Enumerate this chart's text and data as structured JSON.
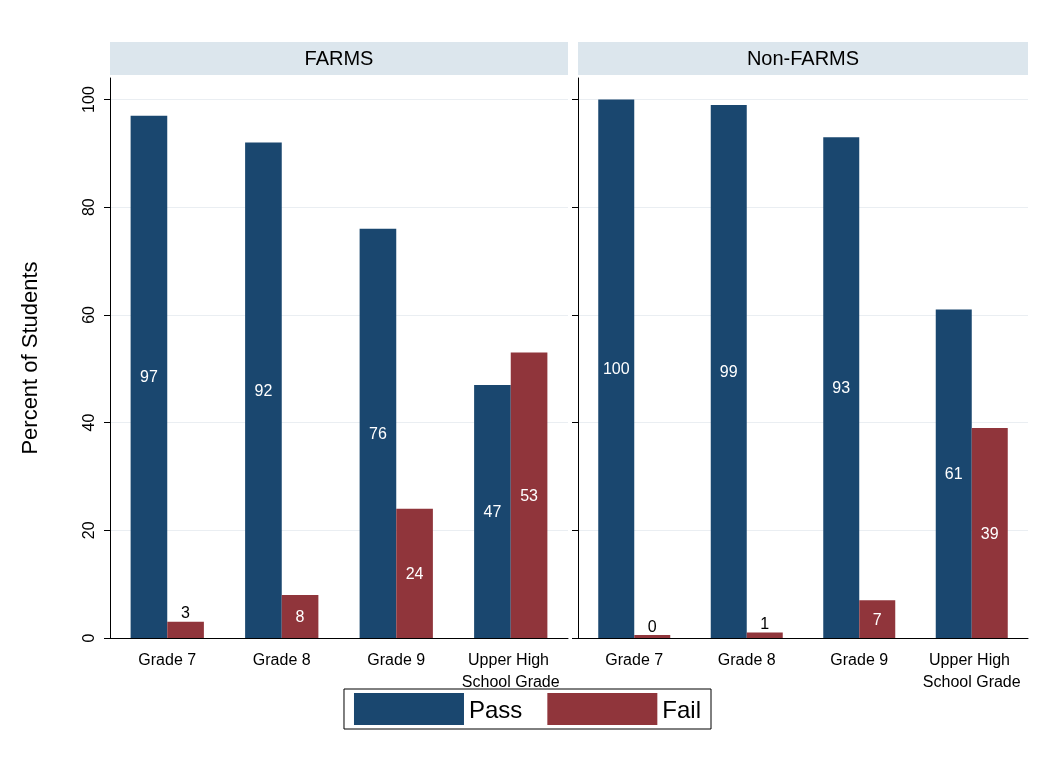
{
  "chart_data": [
    {
      "type": "bar",
      "title": "FARMS",
      "ylabel": "Percent of Students",
      "categories": [
        "Grade 7",
        "Grade 8",
        "Grade 9",
        "Upper High School Grade"
      ],
      "series": [
        {
          "name": "Pass",
          "color": "#1a476f",
          "values": [
            97,
            92,
            76,
            47
          ]
        },
        {
          "name": "Fail",
          "color": "#90353b",
          "values": [
            3,
            8,
            24,
            53
          ]
        }
      ],
      "ylim": [
        0,
        104
      ],
      "yticks": [
        0,
        20,
        40,
        60,
        80,
        100
      ],
      "grid": "y",
      "legend": "bottom",
      "data_labels": true
    },
    {
      "type": "bar",
      "title": "Non-FARMS",
      "categories": [
        "Grade 7",
        "Grade 8",
        "Grade 9",
        "Upper High School Grade"
      ],
      "series": [
        {
          "name": "Pass",
          "color": "#1a476f",
          "values": [
            100,
            99,
            93,
            61
          ]
        },
        {
          "name": "Fail",
          "color": "#90353b",
          "values": [
            0,
            1,
            7,
            39
          ]
        }
      ],
      "ylim": [
        0,
        104
      ],
      "yticks": [
        0,
        20,
        40,
        60,
        80,
        100
      ],
      "grid": "y",
      "tick_labels": "x",
      "data_labels": true
    }
  ]
}
